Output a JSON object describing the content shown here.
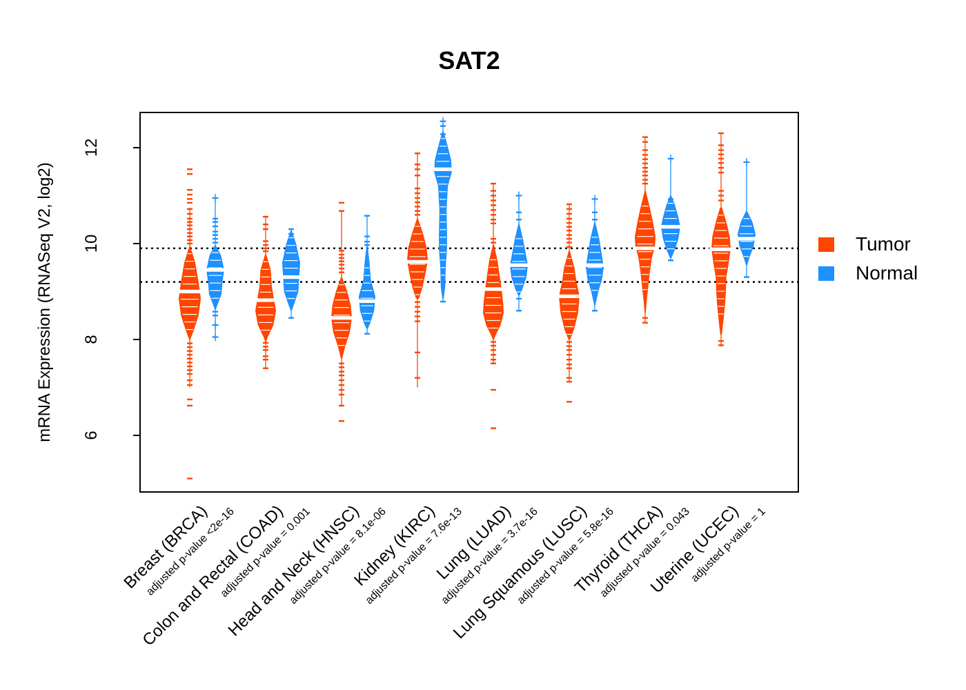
{
  "chart_data": {
    "type": "beanplot",
    "title": "SAT2",
    "ylabel": "mRNA Expression (RNASeq V2, log2)",
    "xlabel": "",
    "yticks": [
      6,
      8,
      10,
      12
    ],
    "ylim": [
      4.8,
      12.75
    ],
    "grid": false,
    "legend_position": "right",
    "hlines": [
      9.9,
      9.2
    ],
    "series_colors": {
      "tumor": "#FF4500",
      "normal": "#1E90FF"
    },
    "legend": [
      {
        "label": "Tumor",
        "color": "#FF4500"
      },
      {
        "label": "Normal",
        "color": "#1E90FF"
      }
    ],
    "cohorts": [
      {
        "code": "BRCA",
        "label": "Breast (BRCA)",
        "pvalue_label": "adjusted p-value <2e-16",
        "tumor": {
          "mean": 9.0,
          "mh": 16,
          "violin": [
            [
              9.95,
              0.04
            ],
            [
              9.6,
              0.5
            ],
            [
              9.2,
              0.8
            ],
            [
              8.85,
              1.0
            ],
            [
              8.5,
              0.8
            ],
            [
              8.15,
              0.3
            ],
            [
              8.0,
              0.05
            ]
          ],
          "stem": [
            10.75,
            7.0
          ],
          "above": [
            11.55,
            11.45,
            11.12,
            11.02,
            10.93,
            10.85,
            10.72,
            10.62,
            10.52,
            10.45,
            10.38,
            10.3,
            10.22,
            10.15,
            10.07,
            10.0
          ],
          "below": [
            7.92,
            7.84,
            7.76,
            7.68,
            7.6,
            7.52,
            7.44,
            7.36,
            7.28,
            7.15,
            7.05,
            6.75,
            6.62,
            5.1
          ],
          "plus": []
        },
        "normal": {
          "mean": 9.45,
          "mh": 13,
          "violin": [
            [
              9.97,
              0.05
            ],
            [
              9.75,
              0.65
            ],
            [
              9.45,
              1.0
            ],
            [
              9.2,
              0.8
            ],
            [
              8.95,
              0.7
            ],
            [
              8.7,
              0.2
            ],
            [
              8.62,
              0.05
            ]
          ],
          "stem": [
            10.95,
            8.05
          ],
          "above": [
            10.52,
            10.45,
            10.36,
            10.25,
            10.18,
            10.1,
            10.02
          ],
          "below": [
            8.58,
            8.5
          ],
          "plus": [
            10.95,
            8.3,
            8.05
          ]
        }
      },
      {
        "code": "COAD",
        "label": "Colon and Rectal (COAD)",
        "pvalue_label": "adjusted p-value = 0.001",
        "tumor": {
          "mean": 8.82,
          "mh": 15,
          "violin": [
            [
              9.78,
              0.05
            ],
            [
              9.45,
              0.5
            ],
            [
              9.1,
              0.6
            ],
            [
              8.85,
              0.8
            ],
            [
              8.6,
              1.0
            ],
            [
              8.3,
              0.75
            ],
            [
              8.05,
              0.2
            ],
            [
              7.95,
              0.05
            ]
          ],
          "stem": [
            10.58,
            7.4
          ],
          "above": [
            10.56,
            10.4,
            10.3,
            10.05,
            9.97,
            9.9,
            9.84
          ],
          "below": [
            7.93,
            7.85,
            7.78,
            7.65,
            7.58,
            7.4
          ],
          "plus": []
        },
        "normal": {
          "mean": 9.3,
          "mh": 13,
          "violin": [
            [
              10.28,
              0.05
            ],
            [
              10.0,
              0.55
            ],
            [
              9.6,
              1.0
            ],
            [
              9.3,
              0.9
            ],
            [
              9.0,
              0.8
            ],
            [
              8.75,
              0.35
            ],
            [
              8.6,
              0.06
            ]
          ],
          "stem": [
            10.3,
            8.45
          ],
          "above": [
            10.3,
            10.2
          ],
          "below": [
            8.45
          ],
          "plus": []
        }
      },
      {
        "code": "HNSC",
        "label": "Head and Neck (HNSC)",
        "pvalue_label": "adjusted p-value = 8.1e-06",
        "tumor": {
          "mean": 8.45,
          "mh": 15,
          "violin": [
            [
              9.3,
              0.05
            ],
            [
              9.0,
              0.55
            ],
            [
              8.7,
              0.9
            ],
            [
              8.45,
              1.0
            ],
            [
              8.15,
              0.8
            ],
            [
              7.85,
              0.35
            ],
            [
              7.6,
              0.06
            ]
          ],
          "stem": [
            10.68,
            6.6
          ],
          "above": [
            10.85,
            10.68,
            9.85,
            9.77,
            9.7,
            9.63,
            9.56,
            9.48,
            9.4
          ],
          "below": [
            7.5,
            7.42,
            7.33,
            7.25,
            7.15,
            7.05,
            6.95,
            6.85,
            6.62,
            6.3
          ],
          "plus": []
        },
        "normal": {
          "mean": 8.8,
          "mh": 12,
          "violin": [
            [
              9.97,
              0.06
            ],
            [
              9.6,
              0.3
            ],
            [
              9.25,
              0.45
            ],
            [
              8.9,
              1.0
            ],
            [
              8.6,
              0.85
            ],
            [
              8.35,
              0.4
            ],
            [
              8.22,
              0.07
            ]
          ],
          "stem": [
            10.58,
            8.12
          ],
          "above": [
            10.58,
            10.15,
            10.04,
            9.97
          ],
          "below": [
            8.12
          ],
          "plus": []
        }
      },
      {
        "code": "KIRC",
        "label": "Kidney (KIRC)",
        "pvalue_label": "adjusted p-value = 7.6e-13",
        "tumor": {
          "mean": 9.62,
          "mh": 15,
          "violin": [
            [
              10.52,
              0.05
            ],
            [
              10.2,
              0.55
            ],
            [
              9.9,
              0.9
            ],
            [
              9.65,
              1.0
            ],
            [
              9.4,
              0.8
            ],
            [
              9.1,
              0.5
            ],
            [
              8.85,
              0.15
            ]
          ],
          "stem": [
            11.9,
            7.0
          ],
          "above": [
            11.88,
            11.65,
            11.55,
            11.42,
            11.15,
            11.05,
            10.95,
            10.86,
            10.77,
            10.68,
            10.6
          ],
          "below": [
            8.78,
            8.68,
            8.58,
            8.48,
            8.38,
            7.73,
            7.2
          ],
          "plus": []
        },
        "normal": {
          "mean": 11.55,
          "mh": 13,
          "violin": [
            [
              12.35,
              0.05
            ],
            [
              12.05,
              0.5
            ],
            [
              11.75,
              0.9
            ],
            [
              11.5,
              1.0
            ],
            [
              11.2,
              0.55
            ],
            [
              10.7,
              0.4
            ],
            [
              10.2,
              0.45
            ],
            [
              9.9,
              0.45
            ],
            [
              9.5,
              0.3
            ],
            [
              9.1,
              0.25
            ],
            [
              8.85,
              0.08
            ]
          ],
          "stem": [
            12.55,
            8.79
          ],
          "above": [
            12.45,
            12.28,
            12.1
          ],
          "below": [
            8.79
          ],
          "plus": [
            12.55
          ]
        }
      },
      {
        "code": "LUAD",
        "label": "Lung (LUAD)",
        "pvalue_label": "adjusted p-value = 3.7e-16",
        "tumor": {
          "mean": 9.05,
          "mh": 15,
          "violin": [
            [
              9.98,
              0.05
            ],
            [
              9.65,
              0.4
            ],
            [
              9.35,
              0.6
            ],
            [
              9.05,
              0.8
            ],
            [
              8.75,
              0.95
            ],
            [
              8.55,
              1.0
            ],
            [
              8.3,
              0.7
            ],
            [
              8.1,
              0.25
            ],
            [
              8.0,
              0.05
            ]
          ],
          "stem": [
            11.25,
            7.5
          ],
          "above": [
            11.25,
            11.1,
            11.0,
            10.9,
            10.8,
            10.7,
            10.6,
            10.5,
            10.42,
            10.1,
            10.02
          ],
          "below": [
            7.95,
            7.87,
            7.78,
            7.68,
            7.58,
            7.5,
            6.95,
            6.15
          ],
          "plus": []
        },
        "normal": {
          "mean": 9.55,
          "mh": 13,
          "violin": [
            [
              10.42,
              0.05
            ],
            [
              10.1,
              0.45
            ],
            [
              9.8,
              0.75
            ],
            [
              9.55,
              1.0
            ],
            [
              9.3,
              0.85
            ],
            [
              9.05,
              0.4
            ],
            [
              8.92,
              0.08
            ]
          ],
          "stem": [
            11.0,
            8.6
          ],
          "above": [
            10.65,
            10.5
          ],
          "below": [
            8.85,
            8.6
          ],
          "plus": [
            11.0
          ]
        }
      },
      {
        "code": "LUSC",
        "label": "Lung Squamous (LUSC)",
        "pvalue_label": "adjusted p-value = 5.8e-16",
        "tumor": {
          "mean": 8.9,
          "mh": 15,
          "violin": [
            [
              9.85,
              0.05
            ],
            [
              9.5,
              0.5
            ],
            [
              9.2,
              0.7
            ],
            [
              8.9,
              1.0
            ],
            [
              8.55,
              0.85
            ],
            [
              8.2,
              0.45
            ],
            [
              8.0,
              0.08
            ]
          ],
          "stem": [
            10.82,
            7.12
          ],
          "above": [
            10.82,
            10.72,
            10.62,
            10.52,
            10.43,
            10.35,
            10.27,
            10.18,
            10.1,
            10.02,
            9.93
          ],
          "below": [
            7.95,
            7.86,
            7.78,
            7.68,
            7.58,
            7.48,
            7.4,
            7.2,
            7.12,
            6.7
          ],
          "plus": []
        },
        "normal": {
          "mean": 9.55,
          "mh": 13,
          "violin": [
            [
              10.45,
              0.05
            ],
            [
              10.1,
              0.5
            ],
            [
              9.75,
              0.8
            ],
            [
              9.5,
              1.0
            ],
            [
              9.25,
              0.8
            ],
            [
              9.0,
              0.4
            ],
            [
              8.72,
              0.07
            ]
          ],
          "stem": [
            10.93,
            8.6
          ],
          "above": [
            10.65,
            10.5
          ],
          "below": [
            8.6
          ],
          "plus": [
            10.93
          ]
        }
      },
      {
        "code": "THCA",
        "label": "Thyroid (THCA)",
        "pvalue_label": "adjusted p-value = 0.043",
        "tumor": {
          "mean": 9.9,
          "mh": 15,
          "violin": [
            [
              11.1,
              0.05
            ],
            [
              10.75,
              0.45
            ],
            [
              10.45,
              0.75
            ],
            [
              10.15,
              1.0
            ],
            [
              9.95,
              0.95
            ],
            [
              9.7,
              0.65
            ],
            [
              9.4,
              0.45
            ],
            [
              9.1,
              0.3
            ],
            [
              8.8,
              0.15
            ],
            [
              8.55,
              0.05
            ]
          ],
          "stem": [
            12.22,
            8.35
          ],
          "above": [
            12.22,
            12.12,
            11.95,
            11.85,
            11.76,
            11.67,
            11.58,
            11.5,
            11.42,
            11.33,
            11.25
          ],
          "below": [
            8.45,
            8.35
          ],
          "plus": []
        },
        "normal": {
          "mean": 10.35,
          "mh": 14,
          "violin": [
            [
              11.0,
              0.06
            ],
            [
              10.8,
              0.45
            ],
            [
              10.55,
              0.8
            ],
            [
              10.35,
              1.0
            ],
            [
              10.1,
              0.8
            ],
            [
              9.88,
              0.45
            ],
            [
              9.7,
              0.08
            ]
          ],
          "stem": [
            11.77,
            9.65
          ],
          "above": [
            10.93
          ],
          "below": [
            9.65
          ],
          "plus": [
            11.77
          ]
        }
      },
      {
        "code": "UCEC",
        "label": "Uterine (UCEC)",
        "pvalue_label": "adjusted p-value = 1",
        "tumor": {
          "mean": 9.88,
          "mh": 14,
          "violin": [
            [
              10.75,
              0.1
            ],
            [
              10.45,
              0.55
            ],
            [
              10.15,
              0.9
            ],
            [
              9.9,
              1.0
            ],
            [
              9.6,
              0.8
            ],
            [
              9.3,
              0.55
            ],
            [
              9.0,
              0.5
            ],
            [
              8.7,
              0.4
            ],
            [
              8.4,
              0.25
            ],
            [
              8.1,
              0.08
            ]
          ],
          "stem": [
            12.3,
            7.85
          ],
          "above": [
            12.3,
            12.05,
            11.95,
            11.86,
            11.77,
            11.68,
            11.58,
            11.48,
            11.1,
            11.0,
            10.9
          ],
          "below": [
            7.97,
            7.88
          ],
          "plus": []
        },
        "normal": {
          "mean": 10.1,
          "mh": 13,
          "violin": [
            [
              10.68,
              0.06
            ],
            [
              10.45,
              0.65
            ],
            [
              10.2,
              1.0
            ],
            [
              9.95,
              0.8
            ],
            [
              9.72,
              0.35
            ],
            [
              9.55,
              0.07
            ]
          ],
          "stem": [
            11.7,
            9.3
          ],
          "above": [],
          "below": [
            9.3
          ],
          "plus": [
            11.7
          ]
        }
      }
    ]
  }
}
